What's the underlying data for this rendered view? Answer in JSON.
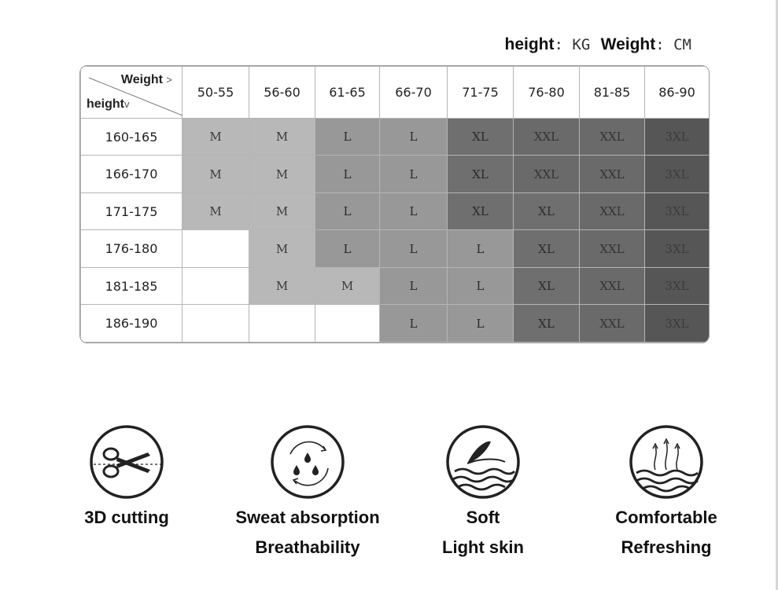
{
  "units_note": {
    "height_label": "height",
    "height_unit": ": KG",
    "weight_label": "Weight",
    "weight_unit": ": CM"
  },
  "size_table": {
    "corner_weight": "Weight",
    "corner_weight_arrow": ">",
    "corner_height": "height",
    "corner_height_arrow": "v",
    "weight_ranges": [
      "50-55",
      "56-60",
      "61-65",
      "66-70",
      "71-75",
      "76-80",
      "81-85",
      "86-90"
    ],
    "rows": [
      {
        "height": "160-165",
        "sizes": [
          "M",
          "M",
          "L",
          "L",
          "XL",
          "XXL",
          "XXL",
          "3XL"
        ]
      },
      {
        "height": "166-170",
        "sizes": [
          "M",
          "M",
          "L",
          "L",
          "XL",
          "XXL",
          "XXL",
          "3XL"
        ]
      },
      {
        "height": "171-175",
        "sizes": [
          "M",
          "M",
          "L",
          "L",
          "XL",
          "XL",
          "XXL",
          "3XL"
        ]
      },
      {
        "height": "176-180",
        "sizes": [
          "",
          "M",
          "L",
          "L",
          "L",
          "XL",
          "XXL",
          "3XL"
        ]
      },
      {
        "height": "181-185",
        "sizes": [
          "",
          "M",
          "M",
          "L",
          "L",
          "XL",
          "XXL",
          "3XL"
        ]
      },
      {
        "height": "186-190",
        "sizes": [
          "",
          "",
          "",
          "L",
          "L",
          "XL",
          "XXL",
          "3XL"
        ]
      }
    ]
  },
  "features": [
    {
      "icon": "scissors-icon",
      "line1": "3D cutting",
      "line2": ""
    },
    {
      "icon": "water-drops-icon",
      "line1": "Sweat absorption",
      "line2": "Breathability"
    },
    {
      "icon": "feather-icon",
      "line1": "Soft",
      "line2": "Light skin"
    },
    {
      "icon": "airflow-waves-icon",
      "line1": "Comfortable",
      "line2": "Refreshing"
    }
  ]
}
